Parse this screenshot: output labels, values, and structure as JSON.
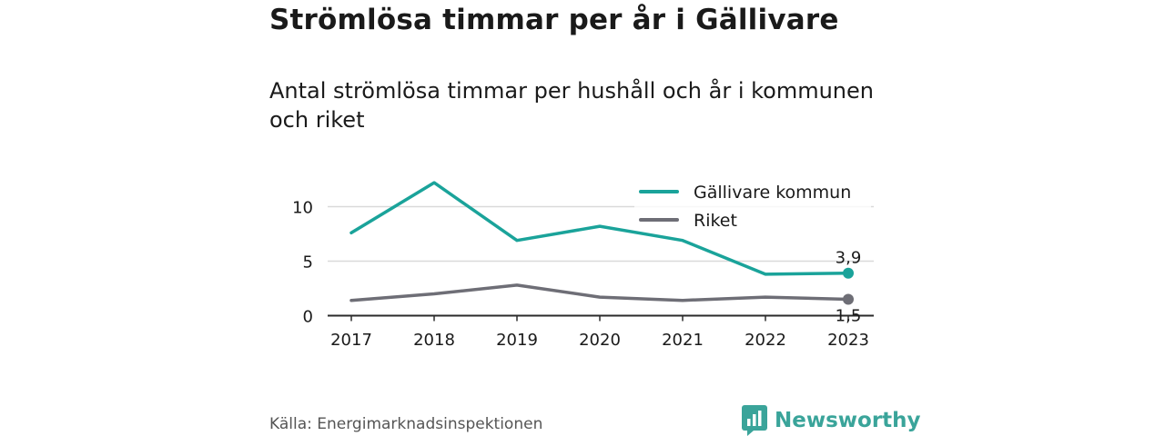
{
  "title": "Strömlösa timmar per år i Gällivare",
  "subtitle": "Antal strömlösa timmar per hushåll och år i kommunen och riket",
  "source": "Källa: Energimarknadsinspektionen",
  "brand": "Newsworthy",
  "colors": {
    "gallivare": "#1aa39a",
    "riket": "#6e6e76",
    "brand": "#3aa49a"
  },
  "chart_data": {
    "type": "line",
    "x": [
      "2017",
      "2018",
      "2019",
      "2020",
      "2021",
      "2022",
      "2023"
    ],
    "series": [
      {
        "name": "Gällivare kommun",
        "values": [
          7.6,
          12.2,
          6.9,
          8.2,
          6.9,
          3.8,
          3.9
        ],
        "end_label": "3,9"
      },
      {
        "name": "Riket",
        "values": [
          1.4,
          2.0,
          2.8,
          1.7,
          1.4,
          1.7,
          1.5
        ],
        "end_label": "1,5"
      }
    ],
    "yticks": [
      0,
      5,
      10
    ],
    "ylim": [
      0,
      12.5
    ],
    "grid": true,
    "legend": "top-right"
  }
}
